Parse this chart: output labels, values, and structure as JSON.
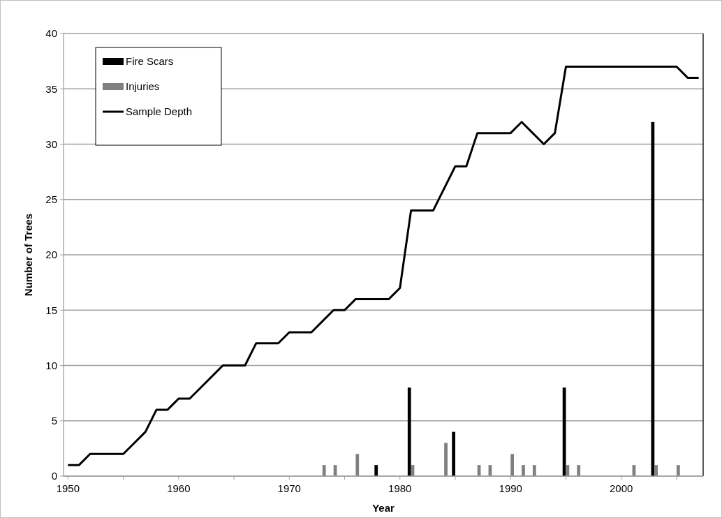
{
  "chart_data": {
    "type": "bar",
    "xlabel": "Year",
    "ylabel": "Number of Trees",
    "xlim": [
      1949.6,
      2007.4
    ],
    "xticks": [
      1950,
      {
        "value": 1955,
        "label": null
      },
      1960,
      {
        "value": 1965,
        "label": null
      },
      1970,
      {
        "value": 1975,
        "label": null
      },
      1980,
      {
        "value": 1985,
        "label": null
      },
      1990,
      {
        "value": 1995,
        "label": null
      },
      2000,
      {
        "value": 2005,
        "label": null
      }
    ],
    "ylim": [
      0,
      40
    ],
    "yticks": [
      0,
      5,
      10,
      15,
      20,
      25,
      30,
      35,
      40
    ],
    "grid": "y",
    "legend": "top left",
    "series": [
      {
        "name": "Fire Scars",
        "color": "#000000",
        "x": [
          1978,
          1981,
          1985,
          1995,
          2003
        ],
        "values": [
          1,
          8,
          4,
          8,
          32
        ]
      },
      {
        "name": "Injuries",
        "color": "#808080",
        "x": [
          1973,
          1974,
          1976,
          1981,
          1984,
          1987,
          1988,
          1990,
          1991,
          1992,
          1995,
          1996,
          2001,
          2003,
          2005
        ],
        "values": [
          1,
          1,
          2,
          1,
          3,
          1,
          1,
          2,
          1,
          1,
          1,
          1,
          1,
          1,
          1
        ]
      },
      {
        "name": "Sample Depth",
        "type": "line",
        "color": "#000000",
        "x": [
          1950,
          1951,
          1952,
          1953,
          1954,
          1955,
          1956,
          1957,
          1958,
          1959,
          1960,
          1961,
          1962,
          1963,
          1964,
          1965,
          1966,
          1967,
          1968,
          1969,
          1970,
          1971,
          1972,
          1973,
          1974,
          1975,
          1976,
          1977,
          1978,
          1979,
          1980,
          1981,
          1982,
          1983,
          1984,
          1985,
          1986,
          1987,
          1988,
          1989,
          1990,
          1991,
          1992,
          1993,
          1994,
          1995,
          1996,
          1997,
          1998,
          1999,
          2000,
          2001,
          2002,
          2003,
          2004,
          2005,
          2006,
          2007
        ],
        "values": [
          1,
          1,
          2,
          2,
          2,
          2,
          3,
          4,
          6,
          6,
          7,
          7,
          8,
          9,
          10,
          10,
          10,
          12,
          12,
          12,
          13,
          13,
          13,
          14,
          15,
          15,
          16,
          16,
          16,
          16,
          17,
          24,
          24,
          24,
          26,
          28,
          28,
          31,
          31,
          31,
          31,
          32,
          31,
          30,
          31,
          37,
          37,
          37,
          37,
          37,
          37,
          37,
          37,
          37,
          37,
          37,
          36,
          36
        ]
      }
    ]
  }
}
